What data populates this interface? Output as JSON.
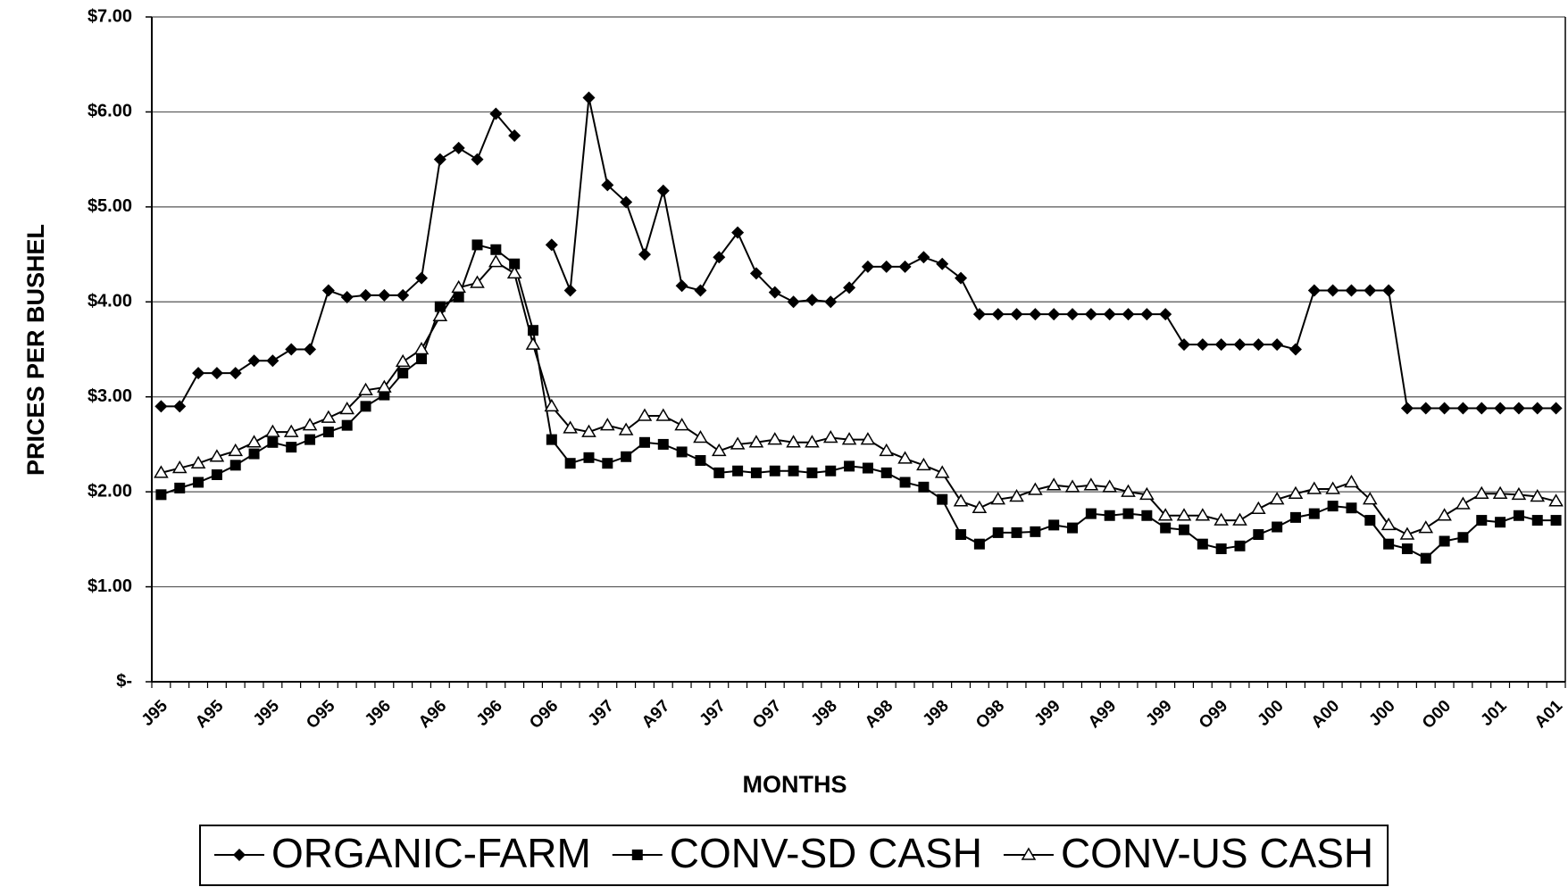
{
  "chart_data": {
    "type": "line",
    "x_label": "MONTHS",
    "y_label": "PRICES PER BUSHEL",
    "categories": [
      "J95",
      null,
      null,
      "A95",
      null,
      null,
      "J95",
      null,
      null,
      "O95",
      null,
      null,
      "J96",
      null,
      null,
      "A96",
      null,
      null,
      "J96",
      null,
      null,
      "O96",
      null,
      null,
      "J97",
      null,
      null,
      "A97",
      null,
      null,
      "J97",
      null,
      null,
      "O97",
      null,
      null,
      "J98",
      null,
      null,
      "A98",
      null,
      null,
      "J98",
      null,
      null,
      "O98",
      null,
      null,
      "J99",
      null,
      null,
      "A99",
      null,
      null,
      "J99",
      null,
      null,
      "O99",
      null,
      null,
      "J00",
      null,
      null,
      "A00",
      null,
      null,
      "J00",
      null,
      null,
      "O00",
      null,
      null,
      "J01",
      null,
      null,
      "A01"
    ],
    "series": [
      {
        "name": "ORGANIC-FARM",
        "color": "#000000",
        "marker": "diamond",
        "values": [
          2.9,
          2.9,
          3.25,
          3.25,
          3.25,
          3.38,
          3.38,
          3.5,
          3.5,
          4.12,
          4.05,
          4.07,
          4.07,
          4.07,
          4.25,
          5.5,
          5.62,
          5.5,
          5.98,
          5.75,
          null,
          4.6,
          4.12,
          6.15,
          5.23,
          5.05,
          4.5,
          5.17,
          4.17,
          4.12,
          4.47,
          4.73,
          4.3,
          4.1,
          4.0,
          4.02,
          4.0,
          4.15,
          4.37,
          4.37,
          4.37,
          4.47,
          4.4,
          4.25,
          3.87,
          3.87,
          3.87,
          3.87,
          3.87,
          3.87,
          3.87,
          3.87,
          3.87,
          3.87,
          3.87,
          3.55,
          3.55,
          3.55,
          3.55,
          3.55,
          3.55,
          3.5,
          4.12,
          4.12,
          4.12,
          4.12,
          4.12,
          2.88,
          2.88,
          2.88,
          2.88,
          2.88,
          2.88,
          2.88,
          2.88,
          2.88
        ]
      },
      {
        "name": "CONV-SD CASH",
        "color": "#000000",
        "marker": "square",
        "values": [
          1.97,
          2.04,
          2.1,
          2.18,
          2.28,
          2.4,
          2.52,
          2.47,
          2.55,
          2.63,
          2.7,
          2.9,
          3.02,
          3.25,
          3.4,
          3.95,
          4.05,
          4.6,
          4.55,
          4.4,
          3.7,
          2.55,
          2.3,
          2.36,
          2.3,
          2.37,
          2.52,
          2.5,
          2.42,
          2.33,
          2.2,
          2.22,
          2.2,
          2.22,
          2.22,
          2.2,
          2.22,
          2.27,
          2.25,
          2.2,
          2.1,
          2.05,
          1.92,
          1.55,
          1.45,
          1.57,
          1.57,
          1.58,
          1.65,
          1.62,
          1.77,
          1.75,
          1.77,
          1.75,
          1.62,
          1.6,
          1.45,
          1.4,
          1.43,
          1.55,
          1.63,
          1.73,
          1.77,
          1.85,
          1.83,
          1.7,
          1.45,
          1.4,
          1.3,
          1.48,
          1.52,
          1.7,
          1.68,
          1.75,
          1.7,
          1.7
        ]
      },
      {
        "name": "CONV-US CASH",
        "color": "#000000",
        "marker": "triangle",
        "values": [
          2.2,
          2.25,
          2.3,
          2.37,
          2.43,
          2.52,
          2.63,
          2.63,
          2.7,
          2.78,
          2.87,
          3.07,
          3.1,
          3.37,
          3.5,
          3.85,
          4.15,
          4.2,
          4.42,
          4.3,
          3.55,
          2.9,
          2.67,
          2.63,
          2.7,
          2.65,
          2.8,
          2.8,
          2.7,
          2.57,
          2.43,
          2.5,
          2.52,
          2.55,
          2.52,
          2.52,
          2.57,
          2.55,
          2.55,
          2.43,
          2.35,
          2.28,
          2.2,
          1.9,
          1.83,
          1.92,
          1.95,
          2.02,
          2.07,
          2.05,
          2.07,
          2.05,
          2.0,
          1.97,
          1.75,
          1.75,
          1.75,
          1.7,
          1.7,
          1.82,
          1.92,
          1.98,
          2.03,
          2.03,
          2.1,
          1.92,
          1.65,
          1.55,
          1.62,
          1.75,
          1.87,
          1.98,
          1.98,
          1.97,
          1.95,
          1.9
        ]
      }
    ],
    "ylim": [
      0,
      7
    ],
    "yticks": [
      {
        "value": 0,
        "label": "$-"
      },
      {
        "value": 1,
        "label": "$1.00"
      },
      {
        "value": 2,
        "label": "$2.00"
      },
      {
        "value": 3,
        "label": "$3.00"
      },
      {
        "value": 4,
        "label": "$4.00"
      },
      {
        "value": 5,
        "label": "$5.00"
      },
      {
        "value": 6,
        "label": "$6.00"
      },
      {
        "value": 7,
        "label": "$7.00"
      }
    ],
    "grid": true,
    "legend": "bottom"
  }
}
